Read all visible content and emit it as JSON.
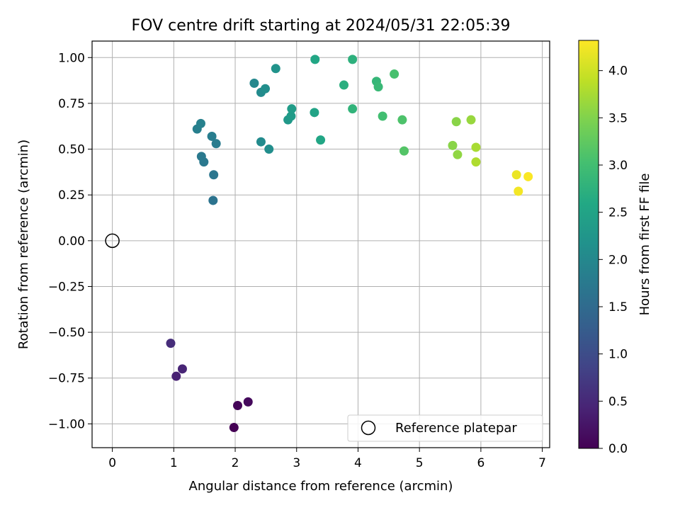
{
  "chart_data": {
    "type": "scatter",
    "title": "FOV centre drift starting at 2024/05/31 22:05:39",
    "xlabel": "Angular distance from reference (arcmin)",
    "ylabel": "Rotation from reference (arcmin)",
    "xlim": [
      -0.33,
      7.12
    ],
    "ylim": [
      -1.13,
      1.09
    ],
    "x_ticks": [
      0,
      1,
      2,
      3,
      4,
      5,
      6,
      7
    ],
    "x_tick_labels": [
      "0",
      "1",
      "2",
      "3",
      "4",
      "5",
      "6",
      "7"
    ],
    "y_ticks": [
      1.0,
      0.75,
      0.5,
      0.25,
      0.0,
      -0.25,
      -0.5,
      -0.75,
      -1.0
    ],
    "y_tick_labels": [
      "1.00",
      "0.75",
      "0.50",
      "0.25",
      "0.00",
      "−0.25",
      "−0.50",
      "−0.75",
      "−1.00"
    ],
    "grid": true,
    "colormap": "viridis",
    "colorbar": {
      "label": "Hours from first FF file",
      "range": [
        0.0,
        4.32
      ],
      "ticks": [
        0.0,
        0.5,
        1.0,
        1.5,
        2.0,
        2.5,
        3.0,
        3.5,
        4.0
      ],
      "tick_labels": [
        "0.0",
        "0.5",
        "1.0",
        "1.5",
        "2.0",
        "2.5",
        "3.0",
        "3.5",
        "4.0"
      ]
    },
    "reference": {
      "name": "Reference platepar",
      "x": 0.0,
      "y": 0.0
    },
    "legend": {
      "location": "lower-right",
      "entries": [
        "Reference platepar"
      ]
    },
    "points": [
      {
        "x": 1.98,
        "y": -1.02,
        "hours": 0.0
      },
      {
        "x": 2.04,
        "y": -0.9,
        "hours": 0.05
      },
      {
        "x": 2.21,
        "y": -0.88,
        "hours": 0.1
      },
      {
        "x": 1.04,
        "y": -0.74,
        "hours": 0.4
      },
      {
        "x": 1.14,
        "y": -0.7,
        "hours": 0.45
      },
      {
        "x": 0.95,
        "y": -0.56,
        "hours": 0.55
      },
      {
        "x": 1.64,
        "y": 0.22,
        "hours": 1.65
      },
      {
        "x": 1.65,
        "y": 0.36,
        "hours": 1.7
      },
      {
        "x": 1.49,
        "y": 0.43,
        "hours": 1.72
      },
      {
        "x": 1.45,
        "y": 0.46,
        "hours": 1.75
      },
      {
        "x": 1.69,
        "y": 0.53,
        "hours": 1.8
      },
      {
        "x": 1.62,
        "y": 0.57,
        "hours": 1.82
      },
      {
        "x": 1.38,
        "y": 0.61,
        "hours": 1.85
      },
      {
        "x": 1.44,
        "y": 0.64,
        "hours": 1.88
      },
      {
        "x": 2.42,
        "y": 0.54,
        "hours": 2.05
      },
      {
        "x": 2.55,
        "y": 0.5,
        "hours": 2.1
      },
      {
        "x": 2.31,
        "y": 0.86,
        "hours": 2.0
      },
      {
        "x": 2.42,
        "y": 0.81,
        "hours": 2.05
      },
      {
        "x": 2.49,
        "y": 0.83,
        "hours": 2.1
      },
      {
        "x": 2.66,
        "y": 0.94,
        "hours": 2.2
      },
      {
        "x": 2.86,
        "y": 0.66,
        "hours": 2.3
      },
      {
        "x": 2.91,
        "y": 0.68,
        "hours": 2.35
      },
      {
        "x": 2.92,
        "y": 0.72,
        "hours": 2.37
      },
      {
        "x": 3.29,
        "y": 0.7,
        "hours": 2.5
      },
      {
        "x": 3.39,
        "y": 0.55,
        "hours": 2.55
      },
      {
        "x": 3.3,
        "y": 0.99,
        "hours": 2.55
      },
      {
        "x": 3.77,
        "y": 0.85,
        "hours": 2.7
      },
      {
        "x": 3.91,
        "y": 0.99,
        "hours": 2.75
      },
      {
        "x": 3.91,
        "y": 0.72,
        "hours": 2.8
      },
      {
        "x": 4.3,
        "y": 0.87,
        "hours": 2.85
      },
      {
        "x": 4.33,
        "y": 0.84,
        "hours": 2.9
      },
      {
        "x": 4.4,
        "y": 0.68,
        "hours": 3.0
      },
      {
        "x": 4.59,
        "y": 0.91,
        "hours": 3.05
      },
      {
        "x": 4.72,
        "y": 0.66,
        "hours": 3.1
      },
      {
        "x": 4.75,
        "y": 0.49,
        "hours": 3.15
      },
      {
        "x": 5.54,
        "y": 0.52,
        "hours": 3.55
      },
      {
        "x": 5.62,
        "y": 0.47,
        "hours": 3.6
      },
      {
        "x": 5.6,
        "y": 0.65,
        "hours": 3.55
      },
      {
        "x": 5.84,
        "y": 0.66,
        "hours": 3.65
      },
      {
        "x": 5.92,
        "y": 0.51,
        "hours": 3.75
      },
      {
        "x": 5.92,
        "y": 0.43,
        "hours": 3.8
      },
      {
        "x": 6.58,
        "y": 0.36,
        "hours": 4.2
      },
      {
        "x": 6.61,
        "y": 0.27,
        "hours": 4.25
      },
      {
        "x": 6.77,
        "y": 0.35,
        "hours": 4.3
      }
    ]
  }
}
